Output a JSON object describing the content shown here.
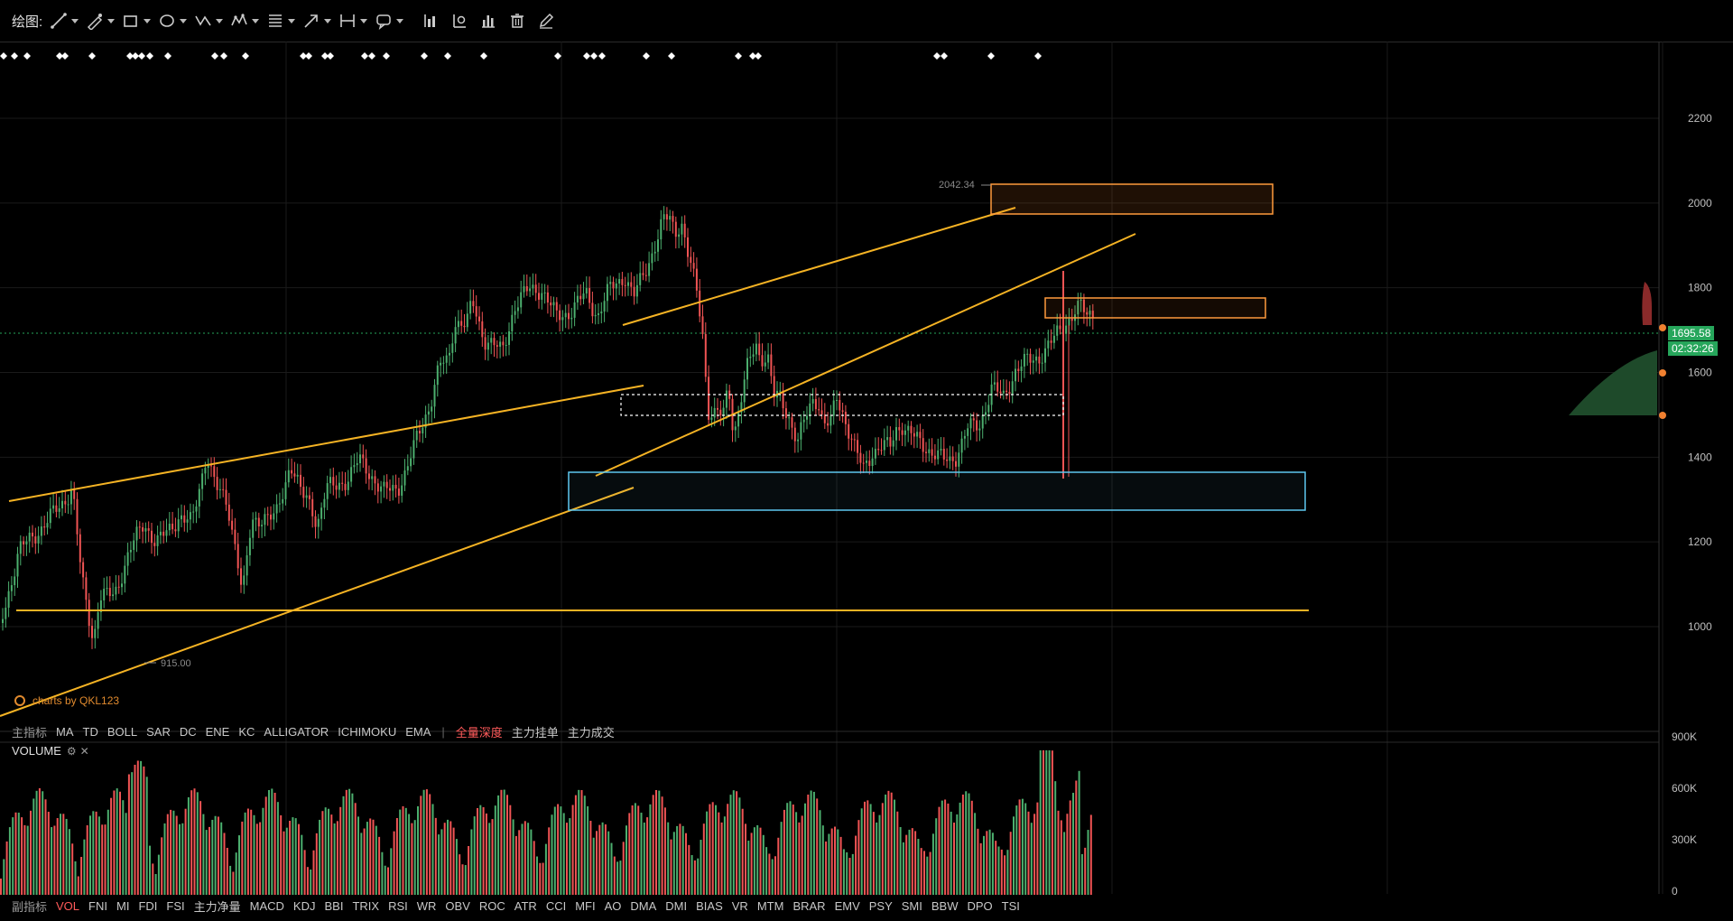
{
  "toolbar": {
    "label": "绘图:",
    "tools": [
      {
        "name": "line-tool",
        "icon": "line-icon",
        "dropdown": true
      },
      {
        "name": "pen-tool",
        "icon": "pen-icon",
        "dropdown": true
      },
      {
        "name": "rectangle-tool",
        "icon": "rectangle-icon",
        "dropdown": true
      },
      {
        "name": "ellipse-tool",
        "icon": "ellipse-icon",
        "dropdown": true
      },
      {
        "name": "zigzag-tool",
        "icon": "zigzag-icon",
        "dropdown": true
      },
      {
        "name": "pattern-tool",
        "icon": "pattern-icon",
        "dropdown": true
      },
      {
        "name": "fibonacci-tool",
        "icon": "fibonacci-icon",
        "dropdown": true
      },
      {
        "name": "arrow-tool",
        "icon": "arrow-icon",
        "dropdown": true
      },
      {
        "name": "measure-tool",
        "icon": "measure-icon",
        "dropdown": true
      },
      {
        "name": "comment-tool",
        "icon": "comment-icon",
        "dropdown": true
      },
      {
        "name": "indicator-a-tool",
        "icon": "bar-chart-icon",
        "dropdown": false
      },
      {
        "name": "indicator-b-tool",
        "icon": "chart-settings-icon",
        "dropdown": false
      },
      {
        "name": "indicator-c-tool",
        "icon": "bar-chart-2-icon",
        "dropdown": false
      },
      {
        "name": "delete-tool",
        "icon": "trash-icon",
        "dropdown": false
      },
      {
        "name": "edit-tool",
        "icon": "edit-icon",
        "dropdown": false
      }
    ]
  },
  "chart": {
    "price_axis": [
      "2200",
      "2000",
      "1800",
      "1600",
      "1400",
      "1200",
      "1000"
    ],
    "current_price": "1695.58",
    "countdown": "02:32:26",
    "high_label": "2042.34",
    "low_label": "915.00",
    "watermark": "charts by QKL123",
    "volume_axis": [
      "900K",
      "600K",
      "300K",
      "0"
    ],
    "colors": {
      "up": "#4caf6e",
      "down": "#f05454",
      "trend": "#f5b324",
      "zone_orange": "#ff9a3c",
      "zone_blue": "#5ec8f0",
      "dashed": "#ffffff"
    }
  },
  "main_indicators": {
    "label": "主指标",
    "items": [
      "MA",
      "TD",
      "BOLL",
      "SAR",
      "DC",
      "ENE",
      "KC",
      "ALLIGATOR",
      "ICHIMOKU",
      "EMA"
    ],
    "separator": "|",
    "depth_items": [
      "全量深度",
      "主力挂单",
      "主力成交"
    ]
  },
  "volume_panel": {
    "title": "VOLUME",
    "settings": "⚙",
    "close": "✕"
  },
  "sub_indicators": {
    "label": "副指标",
    "active": "VOL",
    "items": [
      "FNI",
      "MI",
      "FDI",
      "FSI",
      "主力净量",
      "MACD",
      "KDJ",
      "BBI",
      "TRIX",
      "RSI",
      "WR",
      "OBV",
      "ROC",
      "ATR",
      "CCI",
      "MFI",
      "AO",
      "DMA",
      "DMI",
      "BIAS",
      "VR",
      "MTM",
      "BRAR",
      "EMV",
      "PSY",
      "SMI",
      "BBW",
      "DPO",
      "TSI"
    ]
  }
}
